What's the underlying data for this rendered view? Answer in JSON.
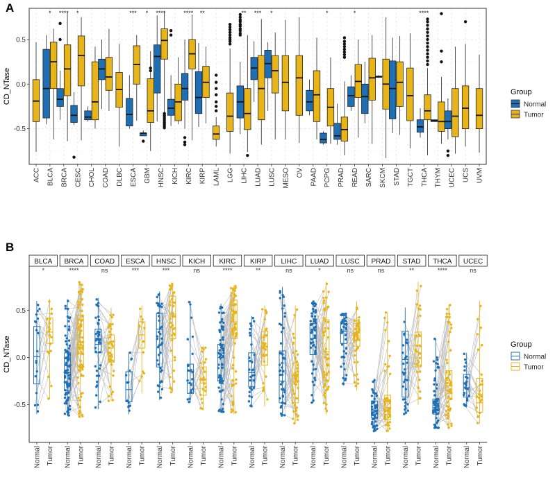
{
  "colors": {
    "normal": "#1f6fb5",
    "tumor": "#e7b51a",
    "tumor_dark": "#c49a12",
    "grid": "#e6e6e6",
    "axis": "#333333",
    "pair_line": "#bdbdbd"
  },
  "chart_data": [
    {
      "type": "boxplot",
      "panel": "A",
      "ylabel": "CD_NTase",
      "ylim": [
        -0.9,
        0.85
      ],
      "yticks": [
        -0.5,
        0.0,
        0.5
      ],
      "ytick_labels": [
        "-0.5",
        "0.0",
        "0.5"
      ],
      "legend": {
        "title": "Group",
        "entries": [
          "Normal",
          "Tumor"
        ],
        "placement": "right"
      },
      "grid": true,
      "categories": [
        "ACC",
        "BLCA",
        "BRCA",
        "CESC",
        "CHOL",
        "COAD",
        "DLBC",
        "ESCA",
        "GBM",
        "HNSC",
        "KICH",
        "KIRC",
        "KIRP",
        "LAML",
        "LGG",
        "LIHC",
        "LUAD",
        "LUSC",
        "MESO",
        "OV",
        "PAAD",
        "PCPG",
        "PRAD",
        "READ",
        "SARC",
        "SKCM",
        "STAD",
        "TGCT",
        "THCA",
        "THYM",
        "UCEC",
        "UCS",
        "UVM"
      ],
      "significance": [
        "",
        "*",
        "****",
        "*",
        "",
        "",
        "",
        "***",
        "*",
        "****",
        "",
        "****",
        "**",
        "",
        "",
        "**",
        "***",
        "*",
        "",
        "",
        "",
        "*",
        "",
        "*",
        "",
        "",
        "",
        "",
        "****",
        "",
        "",
        "",
        ""
      ],
      "boxes": {
        "ACC": {
          "tumor": [
            -0.76,
            -0.42,
            -0.19,
            0.05,
            0.47
          ]
        },
        "BLCA": {
          "normal": [
            -0.45,
            -0.38,
            -0.05,
            0.39,
            0.55
          ],
          "tumor": [
            -0.62,
            -0.05,
            0.25,
            0.47,
            0.62
          ]
        },
        "BRCA": {
          "normal": [
            -0.4,
            -0.25,
            -0.17,
            -0.05,
            0.15
          ],
          "tumor": [
            -0.64,
            -0.13,
            0.17,
            0.44,
            0.8
          ],
          "normal_outliers": [
            0.5,
            0.68
          ],
          "tumor_outliers": []
        },
        "CESC": {
          "normal": [
            -0.46,
            -0.43,
            -0.35,
            -0.24,
            -0.09
          ],
          "tumor": [
            -0.63,
            -0.02,
            0.32,
            0.54,
            0.75
          ],
          "normal_outliers": [
            -0.82
          ]
        },
        "CHOL": {
          "normal": [
            -0.42,
            -0.4,
            -0.37,
            -0.3,
            -0.25
          ],
          "tumor": [
            -0.5,
            -0.4,
            -0.2,
            0.25,
            0.42
          ]
        },
        "COAD": {
          "normal": [
            -0.28,
            0.05,
            0.17,
            0.28,
            0.5
          ],
          "tumor": [
            -0.3,
            -0.07,
            0.08,
            0.3,
            0.62
          ]
        },
        "DLBC": {
          "tumor": [
            -0.7,
            -0.26,
            -0.06,
            0.13,
            0.45
          ]
        },
        "ESCA": {
          "normal": [
            -0.5,
            -0.47,
            -0.34,
            -0.16,
            0.1
          ],
          "tumor": [
            -0.41,
            0.0,
            0.22,
            0.43,
            0.55
          ]
        },
        "GBM": {
          "normal": [
            -0.58,
            -0.58,
            -0.55,
            -0.55,
            -0.52
          ],
          "tumor": [
            -0.75,
            -0.43,
            -0.3,
            0.06,
            0.37
          ],
          "normal_outliers": [
            -0.64
          ],
          "tumor_outliers": [
            0.18,
            0.15
          ]
        },
        "HNSC": {
          "normal": [
            -0.42,
            -0.1,
            0.31,
            0.44,
            0.77
          ],
          "tumor": [
            -0.44,
            0.28,
            0.49,
            0.62,
            0.82
          ],
          "tumor_outliers": [
            -0.33,
            -0.35,
            -0.37,
            -0.39,
            -0.41,
            -0.43,
            -0.45,
            -0.47,
            -0.49
          ]
        },
        "KICH": {
          "normal": [
            -0.47,
            -0.35,
            -0.27,
            -0.17,
            0.1
          ],
          "tumor": [
            -0.45,
            -0.41,
            -0.2,
            0.0,
            0.3
          ],
          "normal_outliers": [
            0.55,
            0.6
          ]
        },
        "KIRC": {
          "normal": [
            -0.5,
            -0.18,
            -0.05,
            0.12,
            0.5
          ],
          "tumor": [
            -0.63,
            0.17,
            0.34,
            0.5,
            0.78
          ],
          "normal_outliers": [
            -0.6,
            -0.65,
            -0.68
          ]
        },
        "KIRP": {
          "normal": [
            -0.48,
            -0.33,
            -0.15,
            0.14,
            0.46
          ],
          "tumor": [
            -0.44,
            -0.15,
            0.02,
            0.2,
            0.42
          ]
        },
        "LAML": {
          "tumor": [
            -0.7,
            -0.62,
            -0.56,
            -0.47,
            -0.37
          ],
          "tumor_outliers": [
            -0.3,
            -0.25,
            -0.2,
            -0.12,
            -0.05,
            0.02,
            0.1
          ]
        },
        "LGG": {
          "tumor": [
            -0.78,
            -0.53,
            -0.36,
            -0.1,
            0.4
          ],
          "tumor_outliers": [
            0.45,
            0.48,
            0.5,
            0.52,
            0.55,
            0.58,
            0.61,
            0.64,
            0.67
          ]
        },
        "LIHC": {
          "normal": [
            -0.56,
            -0.38,
            -0.2,
            -0.02,
            0.25
          ],
          "tumor": [
            -0.76,
            -0.51,
            -0.33,
            -0.05,
            0.55
          ],
          "normal_outliers": [
            0.55,
            0.57,
            0.6,
            0.62,
            0.65,
            0.67,
            0.7,
            0.72,
            0.75,
            0.78
          ],
          "tumor_outliers": [
            -0.8
          ]
        },
        "LUAD": {
          "normal": [
            -0.2,
            0.05,
            0.18,
            0.3,
            0.48
          ],
          "tumor": [
            -0.68,
            -0.4,
            -0.05,
            0.32,
            0.73
          ]
        },
        "LUSC": {
          "normal": [
            -0.3,
            0.07,
            0.23,
            0.38,
            0.47
          ],
          "tumor": [
            -0.62,
            -0.1,
            0.15,
            0.32,
            0.58
          ]
        },
        "MESO": {
          "tumor": [
            -0.62,
            -0.3,
            0.02,
            0.32,
            0.72
          ]
        },
        "OV": {
          "tumor": [
            -0.66,
            -0.35,
            0.07,
            0.32,
            0.75
          ]
        },
        "PAAD": {
          "normal": [
            -0.35,
            -0.3,
            -0.2,
            -0.07,
            0.05
          ],
          "tumor": [
            -0.62,
            -0.42,
            -0.12,
            0.15,
            0.52
          ]
        },
        "PCPG": {
          "normal": [
            -0.68,
            -0.66,
            -0.62,
            -0.55,
            -0.53
          ],
          "tumor": [
            -0.67,
            -0.47,
            -0.26,
            -0.05,
            0.3
          ]
        },
        "PRAD": {
          "normal": [
            -0.68,
            -0.62,
            -0.58,
            -0.44,
            -0.22
          ],
          "tumor": [
            -0.8,
            -0.64,
            -0.51,
            -0.37,
            0.03
          ],
          "tumor_outliers": [
            0.3,
            0.33,
            0.36,
            0.39,
            0.42,
            0.45,
            0.48,
            0.52
          ]
        },
        "READ": {
          "normal": [
            -0.3,
            -0.25,
            -0.13,
            -0.03,
            0.1
          ],
          "tumor": [
            -0.6,
            -0.15,
            0.03,
            0.22,
            0.5
          ]
        },
        "SARC": {
          "normal": [
            -0.44,
            -0.33,
            -0.14,
            0.0,
            0.25
          ],
          "tumor": [
            -0.67,
            -0.18,
            0.07,
            0.29,
            0.55
          ]
        },
        "SKCM": {
          "normal": [
            0.07,
            0.08,
            0.08,
            0.09,
            0.1
          ],
          "tumor": [
            -0.83,
            -0.28,
            0.0,
            0.28,
            0.75
          ]
        },
        "STAD": {
          "normal": [
            -0.55,
            -0.39,
            -0.05,
            0.26,
            0.52
          ],
          "tumor": [
            -0.57,
            -0.25,
            0.02,
            0.25,
            0.54
          ]
        },
        "TGCT": {
          "tumor": [
            -0.72,
            -0.41,
            -0.13,
            0.18,
            0.57
          ]
        },
        "THCA": {
          "normal": [
            -0.6,
            -0.54,
            -0.48,
            -0.4,
            -0.27
          ],
          "tumor": [
            -0.8,
            -0.4,
            -0.3,
            -0.12,
            0.18
          ],
          "tumor_outliers": [
            0.22,
            0.26,
            0.3,
            0.34,
            0.38,
            0.42,
            0.46,
            0.5,
            0.54,
            0.58,
            0.62,
            0.66,
            0.7,
            0.73
          ]
        },
        "THYM": {
          "normal": [
            -0.42,
            -0.42,
            -0.41,
            -0.4,
            -0.4
          ],
          "tumor": [
            -0.67,
            -0.53,
            -0.42,
            -0.2,
            0.08
          ],
          "tumor_outliers": [
            0.25,
            0.37,
            0.79
          ]
        },
        "UCEC": {
          "normal": [
            -0.62,
            -0.5,
            -0.42,
            -0.3,
            -0.16
          ],
          "tumor": [
            -0.78,
            -0.59,
            -0.36,
            -0.05,
            0.42
          ],
          "normal_outliers": [
            -0.75,
            -0.8
          ]
        },
        "UCS": {
          "tumor": [
            -0.7,
            -0.5,
            -0.27,
            -0.02,
            0.45
          ],
          "tumor_outliers": [
            0.7
          ]
        },
        "UVM": {
          "tumor": [
            -0.77,
            -0.5,
            -0.35,
            -0.05,
            0.33
          ]
        }
      }
    },
    {
      "type": "paired_boxplot",
      "panel": "B",
      "ylabel": "CD_NTase",
      "ylim": [
        -0.9,
        0.85
      ],
      "yticks": [
        -0.5,
        0.0,
        0.5
      ],
      "ytick_labels": [
        "-0.5",
        "0.0",
        "0.5"
      ],
      "group_labels": [
        "Normal",
        "Tumor"
      ],
      "legend": {
        "title": "Group",
        "entries": [
          "Normal",
          "Tumor"
        ],
        "placement": "right"
      },
      "facets": [
        {
          "name": "BLCA",
          "sig": "*",
          "n": 18,
          "normal": [
            -0.6,
            -0.28,
            0.01,
            0.33,
            0.6
          ],
          "tumor": [
            -0.44,
            0.15,
            0.27,
            0.42,
            0.62
          ]
        },
        {
          "name": "BRCA",
          "sig": "****",
          "n": 90,
          "normal": [
            -0.62,
            -0.35,
            -0.16,
            0.05,
            0.62
          ],
          "tumor": [
            -0.64,
            -0.1,
            0.13,
            0.45,
            0.8
          ]
        },
        {
          "name": "COAD",
          "sig": "ns",
          "n": 40,
          "normal": [
            -0.55,
            0.05,
            0.14,
            0.3,
            0.63
          ],
          "tumor": [
            -0.46,
            -0.05,
            0.1,
            0.24,
            0.53
          ]
        },
        {
          "name": "ESCA",
          "sig": "***",
          "n": 13,
          "normal": [
            -0.6,
            -0.47,
            -0.34,
            -0.15,
            0.06
          ],
          "tumor": [
            -0.38,
            0.1,
            0.24,
            0.38,
            0.55
          ]
        },
        {
          "name": "HNSC",
          "sig": "***",
          "n": 40,
          "normal": [
            -0.45,
            -0.1,
            0.3,
            0.47,
            0.7
          ],
          "tumor": [
            -0.37,
            0.2,
            0.46,
            0.65,
            0.79
          ]
        },
        {
          "name": "KICH",
          "sig": "ns",
          "n": 23,
          "normal": [
            -0.48,
            -0.38,
            -0.27,
            -0.07,
            0.6
          ],
          "tumor": [
            -0.56,
            -0.4,
            -0.27,
            -0.1,
            0.12
          ]
        },
        {
          "name": "KIRC",
          "sig": "****",
          "n": 70,
          "normal": [
            -0.58,
            -0.25,
            0.0,
            0.14,
            0.57
          ],
          "tumor": [
            -0.6,
            0.2,
            0.38,
            0.61,
            0.76
          ]
        },
        {
          "name": "KIRP",
          "sig": "**",
          "n": 30,
          "normal": [
            -0.52,
            -0.31,
            -0.16,
            0.05,
            0.44
          ],
          "tumor": [
            -0.52,
            -0.08,
            0.12,
            0.28,
            0.55
          ]
        },
        {
          "name": "LIHC",
          "sig": "ns",
          "n": 48,
          "normal": [
            -0.62,
            -0.48,
            -0.25,
            0.07,
            0.75
          ],
          "tumor": [
            -0.7,
            -0.48,
            -0.26,
            -0.06,
            0.55
          ]
        },
        {
          "name": "LUAD",
          "sig": "*",
          "n": 55,
          "normal": [
            -0.48,
            0.03,
            0.2,
            0.36,
            0.6
          ],
          "tumor": [
            -0.6,
            -0.24,
            0.06,
            0.4,
            0.8
          ]
        },
        {
          "name": "LUSC",
          "sig": "ns",
          "n": 45,
          "normal": [
            -0.3,
            0.15,
            0.28,
            0.38,
            0.47
          ],
          "tumor": [
            -0.35,
            0.12,
            0.26,
            0.36,
            0.6
          ]
        },
        {
          "name": "PRAD",
          "sig": "ns",
          "n": 50,
          "normal": [
            -0.78,
            -0.64,
            -0.56,
            -0.46,
            -0.22
          ],
          "tumor": [
            -0.78,
            -0.66,
            -0.53,
            -0.4,
            0.48
          ]
        },
        {
          "name": "STAD",
          "sig": "**",
          "n": 32,
          "normal": [
            -0.6,
            -0.42,
            -0.02,
            0.28,
            0.53
          ],
          "tumor": [
            -0.5,
            -0.1,
            0.13,
            0.27,
            0.8
          ]
        },
        {
          "name": "THCA",
          "sig": "****",
          "n": 58,
          "normal": [
            -0.75,
            -0.6,
            -0.53,
            -0.44,
            0.2
          ],
          "tumor": [
            -0.76,
            -0.43,
            -0.3,
            -0.14,
            0.56
          ]
        },
        {
          "name": "UCEC",
          "sig": "ns",
          "n": 23,
          "normal": [
            -0.53,
            -0.42,
            -0.32,
            -0.18,
            0.05
          ],
          "tumor": [
            -0.7,
            -0.58,
            -0.48,
            -0.22,
            0.6
          ]
        }
      ]
    }
  ],
  "panel_labels": [
    "A",
    "B"
  ]
}
